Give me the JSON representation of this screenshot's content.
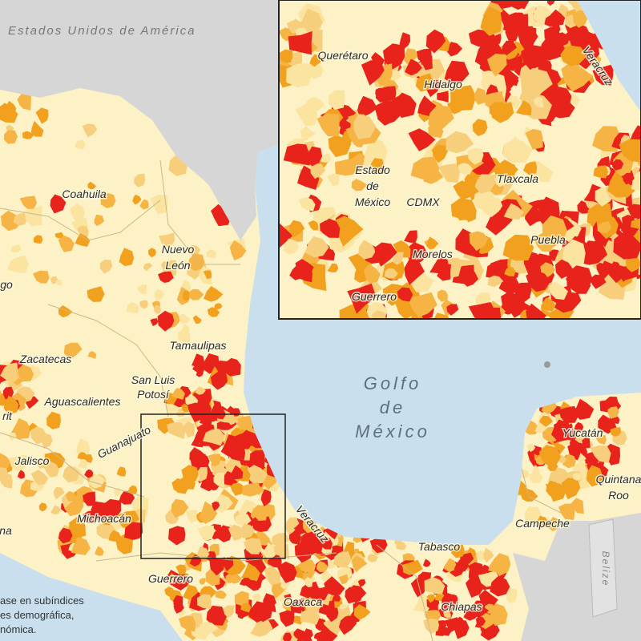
{
  "map": {
    "country_label": "Estados Unidos de América",
    "main_labels": [
      "Coahuila",
      "Nuevo",
      "León",
      "go",
      "Zacatecas",
      "Tamaulipas",
      "San Luis",
      "Potosí",
      "Aguascalientes",
      "rit",
      "Jalisco",
      "Guanajuato",
      "Michoacán",
      "na",
      "Guerrero",
      "Oaxaca",
      "Veracruz",
      "Tabasco",
      "Chiapas",
      "Campeche",
      "Yucatán",
      "Quintana",
      "Roo",
      "Belize"
    ],
    "gulf_label": [
      "Golfo",
      "de",
      "México"
    ],
    "legend_note": [
      "ase en subíndices",
      "es demográfica,",
      "nómica."
    ],
    "inset_labels": [
      "Querétaro",
      "Hidalgo",
      "Veracruz",
      "Estado",
      "de",
      "México",
      "CDMX",
      "Tlaxcala",
      "Puebla",
      "Morelos",
      "Guerrero"
    ]
  }
}
